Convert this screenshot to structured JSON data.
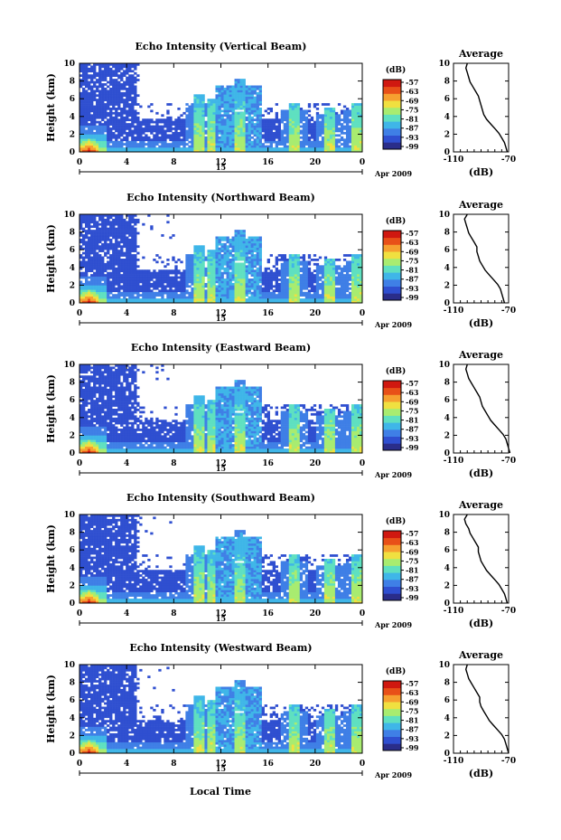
{
  "panels": [
    {
      "title": "Echo Intensity (Vertical Beam)",
      "avg_profile": [
        -100,
        -101,
        -100,
        -99,
        -98,
        -96,
        -94,
        -92,
        -91,
        -90,
        -89,
        -88,
        -86,
        -83,
        -80,
        -77,
        -75,
        -73,
        -72,
        -71
      ]
    },
    {
      "title": "Echo Intensity (Northward Beam)",
      "avg_profile": [
        -100,
        -102,
        -101,
        -100,
        -99,
        -97,
        -95,
        -93,
        -93,
        -92,
        -91,
        -89,
        -87,
        -84,
        -81,
        -78,
        -76,
        -75,
        -74,
        -73
      ]
    },
    {
      "title": "Echo Intensity (Eastward Beam)",
      "avg_profile": [
        -100,
        -101,
        -100,
        -99,
        -97,
        -95,
        -93,
        -91,
        -90,
        -89,
        -87,
        -85,
        -83,
        -80,
        -77,
        -74,
        -72,
        -71,
        -70,
        -69
      ]
    },
    {
      "title": "Echo Intensity (Southward Beam)",
      "avg_profile": [
        -100,
        -102,
        -101,
        -99,
        -98,
        -96,
        -94,
        -92,
        -92,
        -91,
        -90,
        -88,
        -86,
        -83,
        -80,
        -77,
        -75,
        -73,
        -72,
        -71
      ]
    },
    {
      "title": "Echo Intensity (Westward Beam)",
      "avg_profile": [
        -100,
        -101,
        -100,
        -99,
        -97,
        -95,
        -93,
        -91,
        -91,
        -90,
        -88,
        -86,
        -84,
        -81,
        -78,
        -75,
        -73,
        -72,
        -71,
        -70
      ]
    }
  ],
  "main_y_label": "Height (km)",
  "main_y_ticks": [
    "0",
    "2",
    "4",
    "6",
    "8",
    "10"
  ],
  "main_x_ticks": [
    "0",
    "4",
    "8",
    "12",
    "16",
    "20",
    "0"
  ],
  "day_label": "15",
  "date_label": "Apr 2009",
  "colorbar_unit": "(dB)",
  "colorbar_ticks": [
    "-57",
    "-63",
    "-69",
    "-75",
    "-81",
    "-87",
    "-93",
    "-99"
  ],
  "colorbar_colors": [
    "#2a2d8a",
    "#2f4fd0",
    "#3f7fe6",
    "#3fb6e8",
    "#5fe0c0",
    "#a8ec70",
    "#f0e040",
    "#f6a030",
    "#e85018",
    "#d01810"
  ],
  "avg_title": "Average",
  "avg_x_ticks": [
    "-110",
    "-70"
  ],
  "avg_y_ticks": [
    "0",
    "2",
    "4",
    "6",
    "8",
    "10"
  ],
  "avg_x_label": "(dB)",
  "x_axis_label": "Local Time",
  "chart_data": {
    "type": "heatmap",
    "description_units": {
      "x": "Local Time (h)",
      "y": "Height (km)",
      "z": "Echo Intensity (dB)"
    },
    "x_range": [
      0,
      24
    ],
    "y_range": [
      0,
      10
    ],
    "color_range_db": [
      -99,
      -57
    ],
    "average_x_range_db": [
      -110,
      -70
    ],
    "average_y_range_km": [
      0,
      10
    ]
  }
}
